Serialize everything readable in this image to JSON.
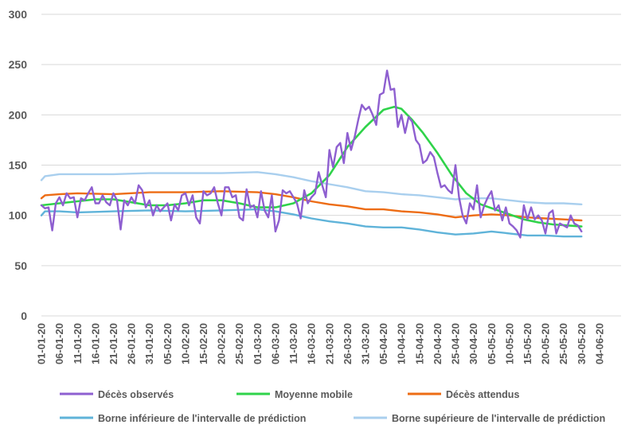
{
  "chart_data": {
    "type": "line",
    "title": "",
    "xlabel": "",
    "ylabel": "",
    "ylim": [
      0,
      300
    ],
    "yticks": [
      0,
      50,
      100,
      150,
      200,
      250,
      300
    ],
    "x_tick_labels": [
      "01-01-20",
      "06-01-20",
      "11-01-20",
      "16-01-20",
      "21-01-20",
      "26-01-20",
      "31-01-20",
      "05-02-20",
      "10-02-20",
      "15-02-20",
      "20-02-20",
      "25-02-20",
      "01-03-20",
      "06-03-20",
      "11-03-20",
      "16-03-20",
      "21-03-20",
      "26-03-20",
      "31-03-20",
      "05-04-20",
      "10-04-20",
      "15-04-20",
      "20-04-20",
      "25-04-20",
      "30-04-20",
      "05-05-20",
      "10-05-20",
      "15-05-20",
      "20-05-20",
      "25-05-20",
      "30-05-20",
      "04-06-20"
    ],
    "x_range_days": [
      0,
      161
    ],
    "grid": "horizontal",
    "legend_position": "bottom",
    "series": [
      {
        "name": "Décès observés",
        "color": "#8e5fd0",
        "points": [
          [
            0,
            110
          ],
          [
            1,
            107
          ],
          [
            2,
            108
          ],
          [
            3,
            85
          ],
          [
            4,
            112
          ],
          [
            5,
            118
          ],
          [
            6,
            110
          ],
          [
            7,
            122
          ],
          [
            8,
            117
          ],
          [
            9,
            118
          ],
          [
            10,
            98
          ],
          [
            11,
            117
          ],
          [
            12,
            115
          ],
          [
            13,
            122
          ],
          [
            14,
            128
          ],
          [
            15,
            112
          ],
          [
            16,
            112
          ],
          [
            17,
            120
          ],
          [
            18,
            113
          ],
          [
            19,
            110
          ],
          [
            20,
            122
          ],
          [
            21,
            115
          ],
          [
            22,
            86
          ],
          [
            23,
            115
          ],
          [
            24,
            110
          ],
          [
            25,
            118
          ],
          [
            26,
            112
          ],
          [
            27,
            130
          ],
          [
            28,
            125
          ],
          [
            29,
            108
          ],
          [
            30,
            115
          ],
          [
            31,
            100
          ],
          [
            32,
            110
          ],
          [
            33,
            104
          ],
          [
            34,
            108
          ],
          [
            35,
            112
          ],
          [
            36,
            95
          ],
          [
            37,
            111
          ],
          [
            38,
            105
          ],
          [
            39,
            120
          ],
          [
            40,
            122
          ],
          [
            41,
            110
          ],
          [
            42,
            120
          ],
          [
            43,
            98
          ],
          [
            44,
            92
          ],
          [
            45,
            124
          ],
          [
            46,
            120
          ],
          [
            47,
            122
          ],
          [
            48,
            128
          ],
          [
            49,
            112
          ],
          [
            50,
            100
          ],
          [
            51,
            128
          ],
          [
            52,
            128
          ],
          [
            53,
            118
          ],
          [
            54,
            120
          ],
          [
            55,
            98
          ],
          [
            56,
            95
          ],
          [
            57,
            126
          ],
          [
            58,
            108
          ],
          [
            59,
            110
          ],
          [
            60,
            98
          ],
          [
            61,
            124
          ],
          [
            62,
            105
          ],
          [
            63,
            98
          ],
          [
            64,
            120
          ],
          [
            65,
            84
          ],
          [
            66,
            95
          ],
          [
            67,
            125
          ],
          [
            68,
            122
          ],
          [
            69,
            124
          ],
          [
            70,
            118
          ],
          [
            71,
            112
          ],
          [
            72,
            97
          ],
          [
            73,
            125
          ],
          [
            74,
            112
          ],
          [
            75,
            118
          ],
          [
            76,
            122
          ],
          [
            77,
            143
          ],
          [
            78,
            130
          ],
          [
            79,
            118
          ],
          [
            80,
            165
          ],
          [
            81,
            148
          ],
          [
            82,
            168
          ],
          [
            83,
            172
          ],
          [
            84,
            152
          ],
          [
            85,
            182
          ],
          [
            86,
            165
          ],
          [
            87,
            178
          ],
          [
            88,
            195
          ],
          [
            89,
            210
          ],
          [
            90,
            205
          ],
          [
            91,
            208
          ],
          [
            92,
            200
          ],
          [
            93,
            190
          ],
          [
            94,
            220
          ],
          [
            95,
            222
          ],
          [
            96,
            244
          ],
          [
            97,
            225
          ],
          [
            98,
            226
          ],
          [
            99,
            188
          ],
          [
            100,
            200
          ],
          [
            101,
            182
          ],
          [
            102,
            198
          ],
          [
            103,
            193
          ],
          [
            104,
            175
          ],
          [
            105,
            170
          ],
          [
            106,
            152
          ],
          [
            107,
            155
          ],
          [
            108,
            163
          ],
          [
            109,
            158
          ],
          [
            110,
            142
          ],
          [
            111,
            128
          ],
          [
            112,
            130
          ],
          [
            113,
            125
          ],
          [
            114,
            122
          ],
          [
            115,
            150
          ],
          [
            116,
            118
          ],
          [
            117,
            100
          ],
          [
            118,
            92
          ],
          [
            119,
            112
          ],
          [
            120,
            106
          ],
          [
            121,
            130
          ],
          [
            122,
            98
          ],
          [
            123,
            110
          ],
          [
            124,
            118
          ],
          [
            125,
            124
          ],
          [
            126,
            105
          ],
          [
            127,
            110
          ],
          [
            128,
            95
          ],
          [
            129,
            108
          ],
          [
            130,
            92
          ],
          [
            131,
            89
          ],
          [
            132,
            85
          ],
          [
            133,
            78
          ],
          [
            134,
            110
          ],
          [
            135,
            96
          ],
          [
            136,
            108
          ],
          [
            137,
            96
          ],
          [
            138,
            100
          ],
          [
            139,
            95
          ],
          [
            140,
            82
          ],
          [
            141,
            102
          ],
          [
            142,
            105
          ],
          [
            143,
            82
          ],
          [
            144,
            92
          ],
          [
            145,
            90
          ],
          [
            146,
            88
          ],
          [
            147,
            100
          ],
          [
            148,
            92
          ],
          [
            149,
            90
          ],
          [
            150,
            84
          ]
        ]
      },
      {
        "name": "Moyenne mobile",
        "color": "#2fd34a",
        "points": [
          [
            0,
            110
          ],
          [
            5,
            112
          ],
          [
            10,
            114
          ],
          [
            15,
            116
          ],
          [
            20,
            116
          ],
          [
            25,
            113
          ],
          [
            30,
            110
          ],
          [
            35,
            110
          ],
          [
            40,
            112
          ],
          [
            45,
            115
          ],
          [
            50,
            115
          ],
          [
            55,
            112
          ],
          [
            60,
            108
          ],
          [
            65,
            108
          ],
          [
            70,
            112
          ],
          [
            75,
            122
          ],
          [
            80,
            140
          ],
          [
            85,
            168
          ],
          [
            90,
            188
          ],
          [
            95,
            205
          ],
          [
            98,
            208
          ],
          [
            100,
            206
          ],
          [
            103,
            195
          ],
          [
            106,
            182
          ],
          [
            110,
            162
          ],
          [
            114,
            140
          ],
          [
            118,
            122
          ],
          [
            122,
            111
          ],
          [
            126,
            106
          ],
          [
            130,
            101
          ],
          [
            134,
            96
          ],
          [
            138,
            93
          ],
          [
            142,
            91
          ],
          [
            146,
            90
          ],
          [
            150,
            89
          ]
        ]
      },
      {
        "name": "Décès attendus",
        "color": "#ed6c14",
        "points": [
          [
            0,
            117
          ],
          [
            1,
            120
          ],
          [
            5,
            121
          ],
          [
            10,
            122
          ],
          [
            20,
            121
          ],
          [
            30,
            123
          ],
          [
            40,
            123
          ],
          [
            50,
            124
          ],
          [
            60,
            123
          ],
          [
            65,
            121
          ],
          [
            70,
            118
          ],
          [
            75,
            114
          ],
          [
            80,
            111
          ],
          [
            85,
            109
          ],
          [
            90,
            106
          ],
          [
            95,
            106
          ],
          [
            100,
            104
          ],
          [
            105,
            103
          ],
          [
            110,
            101
          ],
          [
            115,
            98
          ],
          [
            120,
            100
          ],
          [
            125,
            101
          ],
          [
            130,
            100
          ],
          [
            135,
            98
          ],
          [
            140,
            97
          ],
          [
            145,
            96
          ],
          [
            150,
            95
          ]
        ]
      },
      {
        "name": "Borne inférieure de l'intervalle de prédiction",
        "color": "#5fb3d9",
        "points": [
          [
            0,
            100
          ],
          [
            1,
            104
          ],
          [
            5,
            104
          ],
          [
            10,
            103
          ],
          [
            20,
            104
          ],
          [
            30,
            105
          ],
          [
            40,
            104
          ],
          [
            50,
            105
          ],
          [
            60,
            106
          ],
          [
            65,
            104
          ],
          [
            70,
            101
          ],
          [
            75,
            97
          ],
          [
            80,
            94
          ],
          [
            85,
            92
          ],
          [
            90,
            89
          ],
          [
            95,
            88
          ],
          [
            100,
            88
          ],
          [
            105,
            86
          ],
          [
            110,
            83
          ],
          [
            115,
            81
          ],
          [
            120,
            82
          ],
          [
            125,
            84
          ],
          [
            130,
            82
          ],
          [
            135,
            80
          ],
          [
            140,
            80
          ],
          [
            145,
            79
          ],
          [
            150,
            79
          ]
        ]
      },
      {
        "name": "Borne supérieure de l'intervalle de prédiction",
        "color": "#a9cfee",
        "points": [
          [
            0,
            135
          ],
          [
            1,
            139
          ],
          [
            5,
            141
          ],
          [
            10,
            141
          ],
          [
            20,
            141
          ],
          [
            30,
            142
          ],
          [
            40,
            142
          ],
          [
            50,
            142
          ],
          [
            60,
            143
          ],
          [
            65,
            141
          ],
          [
            70,
            138
          ],
          [
            75,
            134
          ],
          [
            80,
            131
          ],
          [
            85,
            128
          ],
          [
            90,
            124
          ],
          [
            95,
            123
          ],
          [
            100,
            121
          ],
          [
            105,
            120
          ],
          [
            110,
            118
          ],
          [
            115,
            116
          ],
          [
            120,
            117
          ],
          [
            125,
            117
          ],
          [
            130,
            115
          ],
          [
            135,
            113
          ],
          [
            140,
            112
          ],
          [
            145,
            112
          ],
          [
            150,
            111
          ]
        ]
      }
    ]
  }
}
